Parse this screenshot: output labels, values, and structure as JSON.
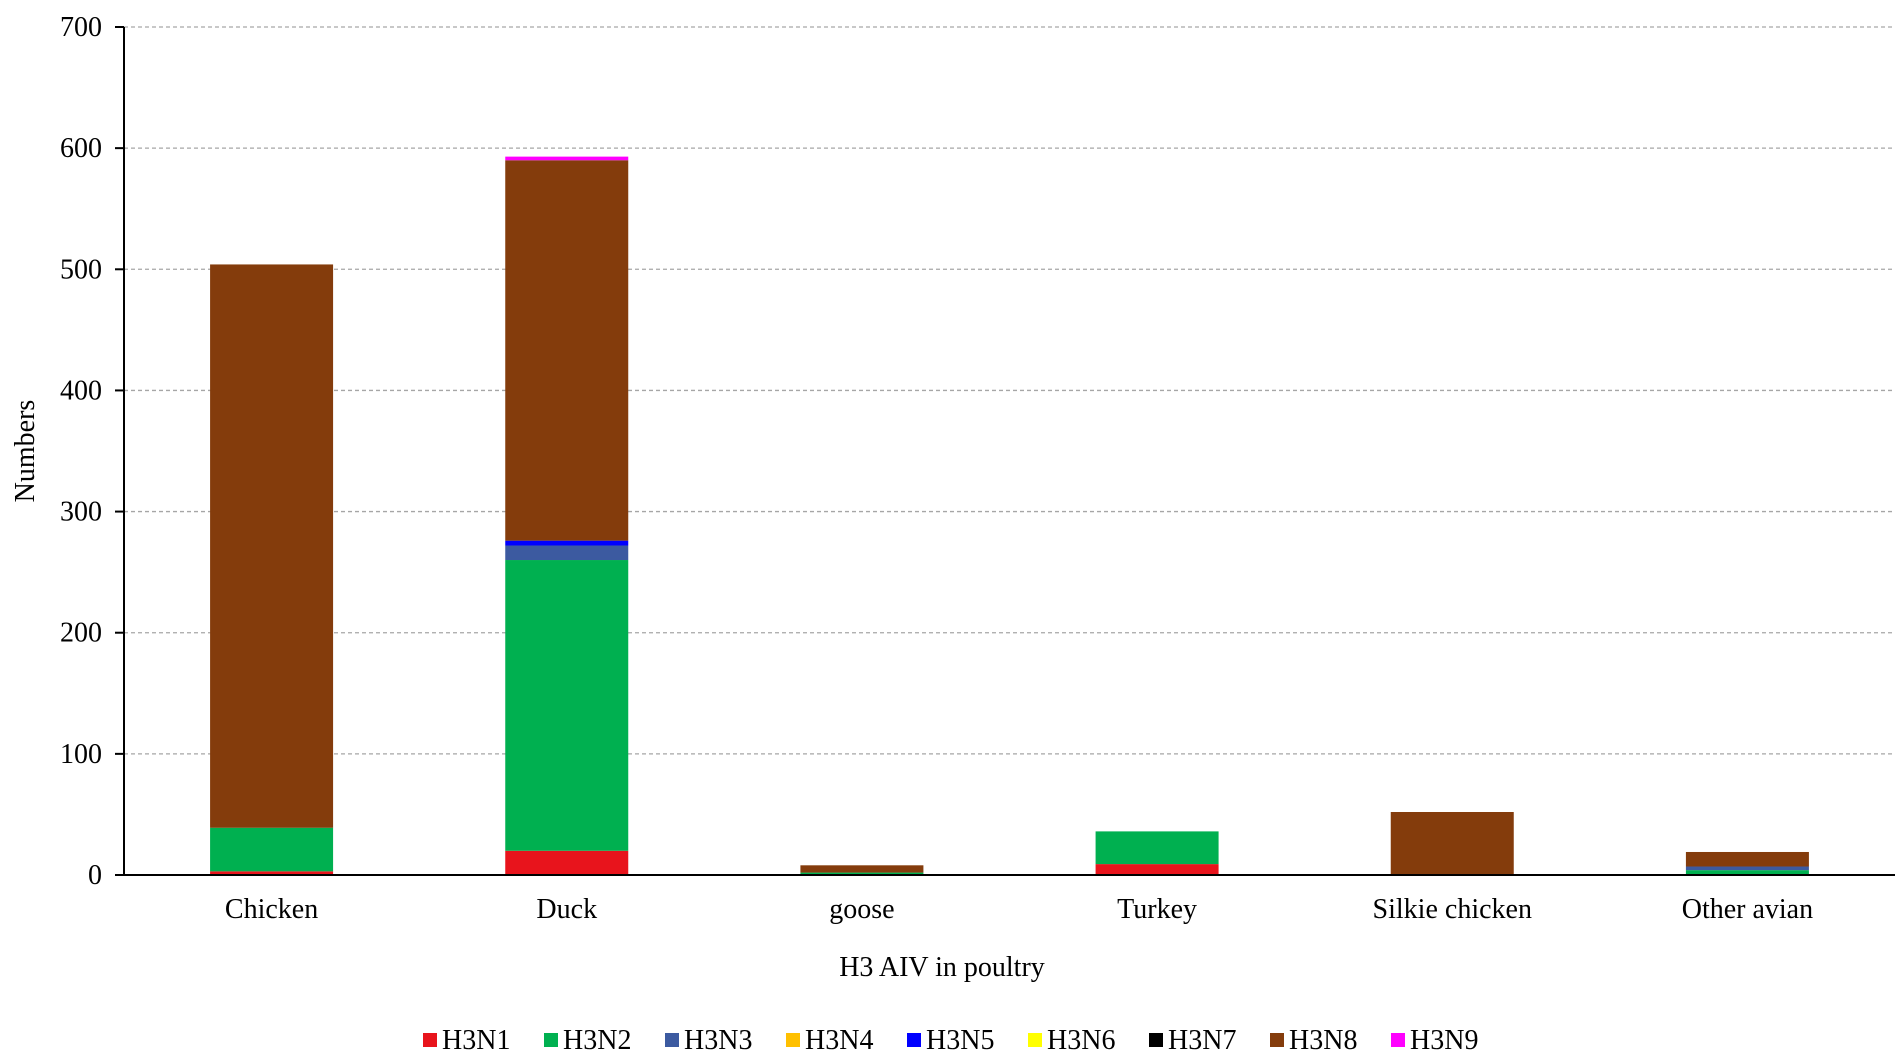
{
  "chart_data": {
    "type": "bar",
    "stacked": true,
    "title": "",
    "xlabel": "H3 AIV in poultry",
    "ylabel": "Numbers",
    "ylim": [
      0,
      700
    ],
    "yticks": [
      0,
      100,
      200,
      300,
      400,
      500,
      600,
      700
    ],
    "grid": "horizontal-dashed",
    "legend": "bottom",
    "categories": [
      "Chicken",
      "Duck",
      "goose",
      "Turkey",
      "Silkie chicken",
      "Other avian"
    ],
    "series": [
      {
        "name": "H3N1",
        "color": "#e8141c",
        "values": [
          3,
          20,
          0,
          9,
          0,
          0
        ]
      },
      {
        "name": "H3N2",
        "color": "#00b050",
        "values": [
          36,
          240,
          2,
          27,
          0,
          4
        ]
      },
      {
        "name": "H3N3",
        "color": "#3c5aa0",
        "values": [
          0,
          12,
          0,
          0,
          0,
          3
        ]
      },
      {
        "name": "H3N4",
        "color": "#ffc000",
        "values": [
          0,
          0,
          0,
          0,
          0,
          0
        ]
      },
      {
        "name": "H3N5",
        "color": "#0000ff",
        "values": [
          0,
          4,
          0,
          0,
          0,
          0
        ]
      },
      {
        "name": "H3N6",
        "color": "#ffff00",
        "values": [
          0,
          0,
          0,
          0,
          0,
          0
        ]
      },
      {
        "name": "H3N7",
        "color": "#000000",
        "values": [
          0,
          0,
          0,
          0,
          0,
          0
        ]
      },
      {
        "name": "H3N8",
        "color": "#843c0c",
        "values": [
          465,
          314,
          6,
          0,
          52,
          12
        ]
      },
      {
        "name": "H3N9",
        "color": "#ff00ff",
        "values": [
          0,
          3,
          0,
          0,
          0,
          0
        ]
      }
    ]
  }
}
